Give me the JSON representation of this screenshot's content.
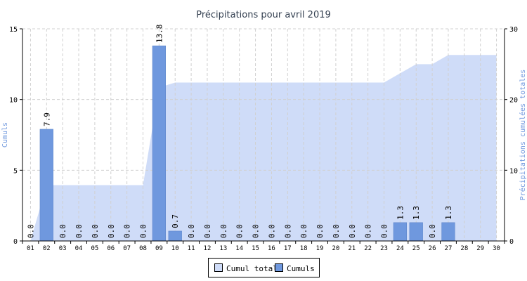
{
  "chart_data": {
    "type": "bar",
    "title": "Précipitations pour avril 2019",
    "categories": [
      "01",
      "02",
      "03",
      "04",
      "05",
      "06",
      "07",
      "08",
      "09",
      "10",
      "11",
      "12",
      "13",
      "14",
      "15",
      "16",
      "17",
      "18",
      "19",
      "20",
      "21",
      "22",
      "23",
      "24",
      "25",
      "26",
      "27",
      "28",
      "29",
      "30"
    ],
    "series": [
      {
        "name": "Cumul total",
        "kind": "area",
        "axis": "right",
        "color": "#cfdcf8",
        "values": [
          0.0,
          7.9,
          7.9,
          7.9,
          7.9,
          7.9,
          7.9,
          7.9,
          21.7,
          22.4,
          22.4,
          22.4,
          22.4,
          22.4,
          22.4,
          22.4,
          22.4,
          22.4,
          22.4,
          22.4,
          22.4,
          22.4,
          22.4,
          23.7,
          25.0,
          25.0,
          26.3,
          26.3,
          26.3,
          26.3
        ]
      },
      {
        "name": "Cumuls",
        "kind": "bar",
        "axis": "left",
        "color": "#6f98de",
        "values": [
          0.0,
          7.9,
          0.0,
          0.0,
          0.0,
          0.0,
          0.0,
          0.0,
          13.8,
          0.7,
          0.0,
          0.0,
          0.0,
          0.0,
          0.0,
          0.0,
          0.0,
          0.0,
          0.0,
          0.0,
          0.0,
          0.0,
          0.0,
          1.3,
          1.3,
          0.0,
          1.3,
          null,
          null,
          null
        ],
        "labels": [
          "0.0",
          "7.9",
          "0.0",
          "0.0",
          "0.0",
          "0.0",
          "0.0",
          "0.0",
          "13.8",
          "0.7",
          "0.0",
          "0.0",
          "0.0",
          "0.0",
          "0.0",
          "0.0",
          "0.0",
          "0.0",
          "0.0",
          "0.0",
          "0.0",
          "0.0",
          "0.0",
          "1.3",
          "1.3",
          "0.0",
          "1.3",
          "",
          "",
          ""
        ]
      }
    ],
    "ylabel": "Cumuls",
    "y2label": "Précipitations cumulées totales",
    "ylim": [
      0,
      15
    ],
    "y2lim": [
      0,
      30
    ],
    "yticks": [
      "0",
      "5",
      "10",
      "15"
    ],
    "y2ticks": [
      "0",
      "10",
      "20",
      "30"
    ],
    "grid": true,
    "legend": "bottom",
    "axis_label_color": "#6f98de"
  }
}
